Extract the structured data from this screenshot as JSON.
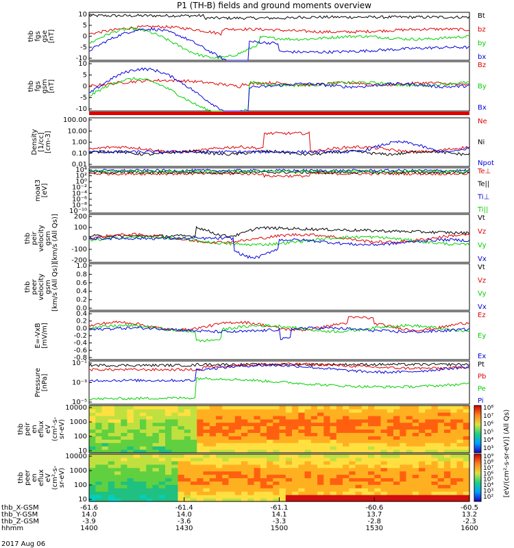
{
  "title": "P1 (TH-B) fields and ground moments overview",
  "x_axis": {
    "ticks": [
      "1400",
      "1430",
      "1500",
      "1530",
      "1600"
    ],
    "rows": [
      {
        "label": "thb_X-GSM",
        "values": [
          "-61.6",
          "-61.4",
          "-61.1",
          "-60.6",
          "-60.5"
        ]
      },
      {
        "label": "thb_Y-GSM",
        "values": [
          "14.0",
          "14.0",
          "14.1",
          "13.7",
          "13.2"
        ]
      },
      {
        "label": "thb_Z-GSM",
        "values": [
          "-3.9",
          "-3.6",
          "-3.3",
          "-2.8",
          "-2.3"
        ]
      },
      {
        "label": "hhmm",
        "values": [
          "1400",
          "1430",
          "1500",
          "1530",
          "1600"
        ]
      }
    ],
    "date": "2017 Aug 06"
  },
  "colors": {
    "black": "#000000",
    "red": "#e00000",
    "green": "#00d000",
    "blue": "#0000dd"
  },
  "chart_data": [
    {
      "id": "fgs_gse",
      "type": "line",
      "ylabel": [
        "thb",
        "fgs",
        "gse",
        "[nT]"
      ],
      "ylim": [
        -10,
        10
      ],
      "yticks": [
        "10",
        "5",
        "0",
        "-5",
        "-10"
      ],
      "legend": [
        {
          "name": "Bt",
          "color": "#000000"
        },
        {
          "name": "bz",
          "color": "#e00000"
        },
        {
          "name": "by",
          "color": "#00d000"
        },
        {
          "name": "bx",
          "color": "#0000dd"
        }
      ]
    },
    {
      "id": "fgs_gsm",
      "type": "line",
      "ylabel": [
        "thb",
        "fgs",
        "gsm",
        "[nT]"
      ],
      "ylim": [
        -15,
        15
      ],
      "yticks": [
        "10",
        "5",
        "0",
        "-5",
        "-10"
      ],
      "legend": [
        {
          "name": "Bz",
          "color": "#e00000"
        },
        {
          "name": "By",
          "color": "#00d000"
        },
        {
          "name": "Bx",
          "color": "#0000dd"
        }
      ]
    },
    {
      "id": "density",
      "type": "line",
      "ylabel": [
        "Density",
        "[1/cc]",
        "[cm-3]"
      ],
      "log": true,
      "yticks": [
        "100.00",
        "10.00",
        "1.00",
        "0.10",
        "0.01"
      ],
      "legend": [
        {
          "name": "Ne",
          "color": "#e00000"
        },
        {
          "name": "Ni",
          "color": "#000000"
        },
        {
          "name": "Npot",
          "color": "#0000dd"
        }
      ]
    },
    {
      "id": "temperature",
      "type": "line",
      "ylabel": [
        "moat3",
        "[eV]"
      ],
      "log": true,
      "yticks": [
        "10⁴",
        "10²",
        "10⁰",
        "10⁻²",
        "10⁻⁴",
        "10⁻⁶",
        "10⁻⁸",
        "10⁻¹⁰"
      ],
      "legend": [
        {
          "name": "Te⊥",
          "color": "#e00000"
        },
        {
          "name": "Te||",
          "color": "#000000"
        },
        {
          "name": "Ti⊥",
          "color": "#0000dd"
        },
        {
          "name": "Ti||",
          "color": "#00d000"
        }
      ]
    },
    {
      "id": "peir_velocity",
      "type": "line",
      "ylabel": [
        "thb",
        "peir",
        "velocity",
        "gsm",
        "[km/s (All Qs)]"
      ],
      "ylim": [
        -200,
        200
      ],
      "yticks": [
        "200",
        "100",
        "0",
        "-100",
        "-200"
      ],
      "legend": [
        {
          "name": "Vt",
          "color": "#000000"
        },
        {
          "name": "Vz",
          "color": "#e00000"
        },
        {
          "name": "Vy",
          "color": "#00d000"
        },
        {
          "name": "Vx",
          "color": "#0000dd"
        }
      ]
    },
    {
      "id": "peer_velocity",
      "type": "line",
      "ylabel": [
        "thb",
        "peer",
        "velocity",
        "gsm",
        "[km/s (All Qs)]"
      ],
      "ylim": [
        0,
        1
      ],
      "yticks": [
        "1.0",
        "0.8",
        "0.6",
        "0.4",
        "0.2",
        "0.0"
      ],
      "legend": [
        {
          "name": "Vt",
          "color": "#000000"
        },
        {
          "name": "Vz",
          "color": "#e00000"
        },
        {
          "name": "Vy",
          "color": "#00d000"
        },
        {
          "name": "Vx",
          "color": "#0000dd"
        }
      ]
    },
    {
      "id": "efield",
      "type": "line",
      "ylabel": [
        "E=-VxB",
        "[mV/m]"
      ],
      "ylim": [
        -0.8,
        0.4
      ],
      "yticks": [
        "0.4",
        "0.2",
        "0.0",
        "-0.2",
        "-0.4",
        "-0.6",
        "-0.8"
      ],
      "legend": [
        {
          "name": "Ez",
          "color": "#e00000"
        },
        {
          "name": "Ey",
          "color": "#00d000"
        },
        {
          "name": "Ex",
          "color": "#0000dd"
        }
      ]
    },
    {
      "id": "pressure",
      "type": "line",
      "ylabel": [
        "Pressure",
        "[nPa]"
      ],
      "log": true,
      "yticks": [
        "10⁻¹",
        "10⁻³",
        "10⁻⁵"
      ],
      "legend": [
        {
          "name": "Pt",
          "color": "#000000"
        },
        {
          "name": "Pb",
          "color": "#e00000"
        },
        {
          "name": "Pe",
          "color": "#00d000"
        },
        {
          "name": "Pi",
          "color": "#0000dd"
        }
      ]
    },
    {
      "id": "peir_spec",
      "type": "heatmap",
      "ylabel": [
        "thb",
        "peir",
        "en",
        "eflux",
        "eV",
        "(cm²-s-",
        "sr-eV)"
      ],
      "yticks": [
        "10000",
        "1000",
        "100",
        "10"
      ]
    },
    {
      "id": "peer_spec",
      "type": "heatmap",
      "ylabel": [
        "thb",
        "peer",
        "en",
        "eflux",
        "eV",
        "(cm²-s-",
        "sr-eV)"
      ],
      "yticks": [
        "10000",
        "1000",
        "100",
        "10"
      ]
    }
  ],
  "colorbars": [
    {
      "id": "cb_ion",
      "ticks": [
        "10⁸",
        "10⁷",
        "10⁶",
        "10⁵",
        "10⁴",
        "10³"
      ]
    },
    {
      "id": "cb_ele",
      "ticks": [
        "10⁹",
        "10⁸",
        "10⁷",
        "10⁶",
        "10⁵",
        "10⁴",
        "10³",
        "10²"
      ]
    }
  ],
  "colorbar_label": "[eV/(cm²-s-sr-eV)] (All Qs)"
}
